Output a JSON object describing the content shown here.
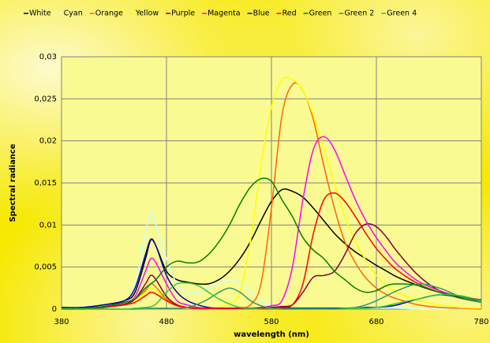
{
  "chart_data": {
    "type": "line",
    "xlabel": "wavelength (nm)",
    "ylabel": "Spectral radiance",
    "x": [
      380,
      400,
      420,
      440,
      450,
      460,
      465,
      470,
      480,
      490,
      500,
      510,
      520,
      530,
      540,
      550,
      560,
      570,
      580,
      590,
      600,
      610,
      620,
      630,
      640,
      650,
      660,
      670,
      680,
      690,
      700,
      720,
      740,
      760,
      780
    ],
    "xlim": [
      380,
      780
    ],
    "xticks": [
      380,
      480,
      580,
      680,
      780
    ],
    "ylim": [
      0,
      0.03
    ],
    "yticks": [
      0,
      {
        "value": 0.005,
        "label": "0,005"
      },
      {
        "value": 0.01,
        "label": "0,01"
      },
      {
        "value": 0.015,
        "label": "0,015"
      },
      {
        "value": 0.02,
        "label": "0,02"
      },
      {
        "value": 0.025,
        "label": "0,025"
      },
      {
        "value": 0.03,
        "label": "0,03"
      }
    ],
    "grid": true,
    "legend": "top",
    "series": [
      {
        "name": "White",
        "color": "#000000",
        "values": [
          0.0002,
          0.0002,
          0.0005,
          0.001,
          0.002,
          0.006,
          0.0082,
          0.0075,
          0.0045,
          0.0035,
          0.0032,
          0.003,
          0.003,
          0.0035,
          0.0045,
          0.006,
          0.008,
          0.0105,
          0.0128,
          0.0142,
          0.014,
          0.0133,
          0.012,
          0.0105,
          0.009,
          0.0078,
          0.0068,
          0.006,
          0.0052,
          0.0045,
          0.0038,
          0.0028,
          0.002,
          0.0015,
          0.0011
        ]
      },
      {
        "name": "Cyan",
        "color": "#ccffff",
        "values": [
          0,
          0,
          0.0003,
          0.001,
          0.003,
          0.009,
          0.0115,
          0.01,
          0.006,
          0.003,
          0.002,
          0.002,
          0.0025,
          0.0032,
          0.0035,
          0.003,
          0.002,
          0.001,
          0.0004,
          0.0002,
          0.0001,
          0.0001,
          0.0001,
          0.0001,
          0.0001,
          0.0001,
          0.0001,
          0.0001,
          0.0001,
          0.0001,
          0.0001,
          0,
          0,
          0,
          0
        ]
      },
      {
        "name": "Orange",
        "color": "#ff6600",
        "values": [
          0,
          0,
          0.0002,
          0.0006,
          0.001,
          0.0022,
          0.003,
          0.0026,
          0.0012,
          0.0005,
          0.0002,
          0.0001,
          0.0001,
          0.0001,
          0.0001,
          0.0002,
          0.0005,
          0.003,
          0.012,
          0.023,
          0.0267,
          0.026,
          0.0225,
          0.017,
          0.012,
          0.008,
          0.0055,
          0.0037,
          0.0025,
          0.0017,
          0.0012,
          0.0005,
          0.0002,
          0.0001,
          0
        ]
      },
      {
        "name": "Yellow",
        "color": "#ffff00",
        "values": [
          0,
          0,
          0.0002,
          0.0005,
          0.001,
          0.002,
          0.0025,
          0.0022,
          0.001,
          0.0004,
          0.0002,
          0.0001,
          0.0001,
          0.0002,
          0.0006,
          0.002,
          0.008,
          0.017,
          0.024,
          0.0272,
          0.0273,
          0.026,
          0.023,
          0.019,
          0.015,
          0.011,
          0.008,
          0.0058,
          0.004,
          0.0028,
          0.002,
          0.001,
          0.0005,
          0.0002,
          0.0001
        ]
      },
      {
        "name": "Purple",
        "color": "#800040",
        "values": [
          0,
          0,
          0.0002,
          0.0006,
          0.0012,
          0.003,
          0.004,
          0.0035,
          0.0015,
          0.0005,
          0.0002,
          0.0001,
          0.0001,
          0.0001,
          0.0001,
          0.0001,
          0.0001,
          0.0001,
          0.0002,
          0.0003,
          0.0005,
          0.002,
          0.0038,
          0.004,
          0.0045,
          0.0065,
          0.009,
          0.0101,
          0.0098,
          0.0085,
          0.0068,
          0.004,
          0.0022,
          0.0015,
          0.001
        ]
      },
      {
        "name": "Magenta",
        "color": "#ff00ff",
        "values": [
          0,
          0,
          0.0003,
          0.0008,
          0.0015,
          0.0045,
          0.006,
          0.0055,
          0.003,
          0.001,
          0.0005,
          0.0002,
          0.0001,
          0.0001,
          0.0001,
          0.0001,
          0.0001,
          0.0002,
          0.0004,
          0.001,
          0.005,
          0.013,
          0.019,
          0.0205,
          0.019,
          0.016,
          0.013,
          0.0105,
          0.0085,
          0.0068,
          0.0053,
          0.0033,
          0.0022,
          0.0015,
          0.0011
        ]
      },
      {
        "name": "Blue",
        "color": "#0000cc",
        "values": [
          0.0001,
          0.0002,
          0.0005,
          0.001,
          0.0025,
          0.0065,
          0.0083,
          0.0075,
          0.004,
          0.002,
          0.001,
          0.0005,
          0.0002,
          0.0001,
          0.0001,
          0.0001,
          0.0001,
          0.0001,
          0.0001,
          0.0001,
          0.0001,
          0.0001,
          0.0001,
          0.0001,
          0.0001,
          0.0001,
          0.0001,
          0.0002,
          0.0002,
          0.0003,
          0.0005,
          0.0012,
          0.0017,
          0.0014,
          0.001
        ]
      },
      {
        "name": "Red",
        "color": "#ff0000",
        "values": [
          0,
          0,
          0.0002,
          0.0005,
          0.0008,
          0.0016,
          0.002,
          0.0018,
          0.001,
          0.0004,
          0.0002,
          0.0001,
          0.0001,
          0.0001,
          0.0001,
          0.0001,
          0.0001,
          0.0001,
          0.0001,
          0.0002,
          0.0005,
          0.003,
          0.009,
          0.013,
          0.0138,
          0.0128,
          0.011,
          0.009,
          0.0072,
          0.0058,
          0.0046,
          0.003,
          0.002,
          0.0015,
          0.0011
        ]
      },
      {
        "name": "Green",
        "color": "#008000",
        "values": [
          0.0001,
          0.0001,
          0.0003,
          0.0008,
          0.0012,
          0.0025,
          0.003,
          0.0035,
          0.005,
          0.0057,
          0.0055,
          0.0056,
          0.0065,
          0.008,
          0.01,
          0.0125,
          0.0145,
          0.0155,
          0.0152,
          0.013,
          0.011,
          0.0085,
          0.007,
          0.006,
          0.0045,
          0.0035,
          0.0025,
          0.002,
          0.0022,
          0.0028,
          0.003,
          0.0028,
          0.002,
          0.0013,
          0.0008
        ]
      },
      {
        "name": "Green 2",
        "color": "#339966",
        "values": [
          0,
          0,
          0,
          0,
          0,
          0.0001,
          0.0001,
          0.0001,
          0.0001,
          0.0001,
          0.0002,
          0.0006,
          0.0012,
          0.002,
          0.0025,
          0.002,
          0.001,
          0.0004,
          0.0001,
          0,
          0,
          0,
          0,
          0,
          0,
          0.0001,
          0.0002,
          0.0005,
          0.001,
          0.0016,
          0.0022,
          0.003,
          0.0025,
          0.0015,
          0.0008
        ]
      },
      {
        "name": "Green 4",
        "color": "#33cc33",
        "values": [
          0,
          0,
          0,
          0,
          0.0001,
          0.0002,
          0.0003,
          0.0006,
          0.002,
          0.003,
          0.0031,
          0.0028,
          0.002,
          0.0012,
          0.0006,
          0.0002,
          0.0001,
          0,
          0,
          0,
          0,
          0,
          0,
          0,
          0,
          0,
          0.0001,
          0.0001,
          0.0002,
          0.0004,
          0.0007,
          0.0012,
          0.0017,
          0.0016,
          0.001
        ]
      }
    ]
  }
}
